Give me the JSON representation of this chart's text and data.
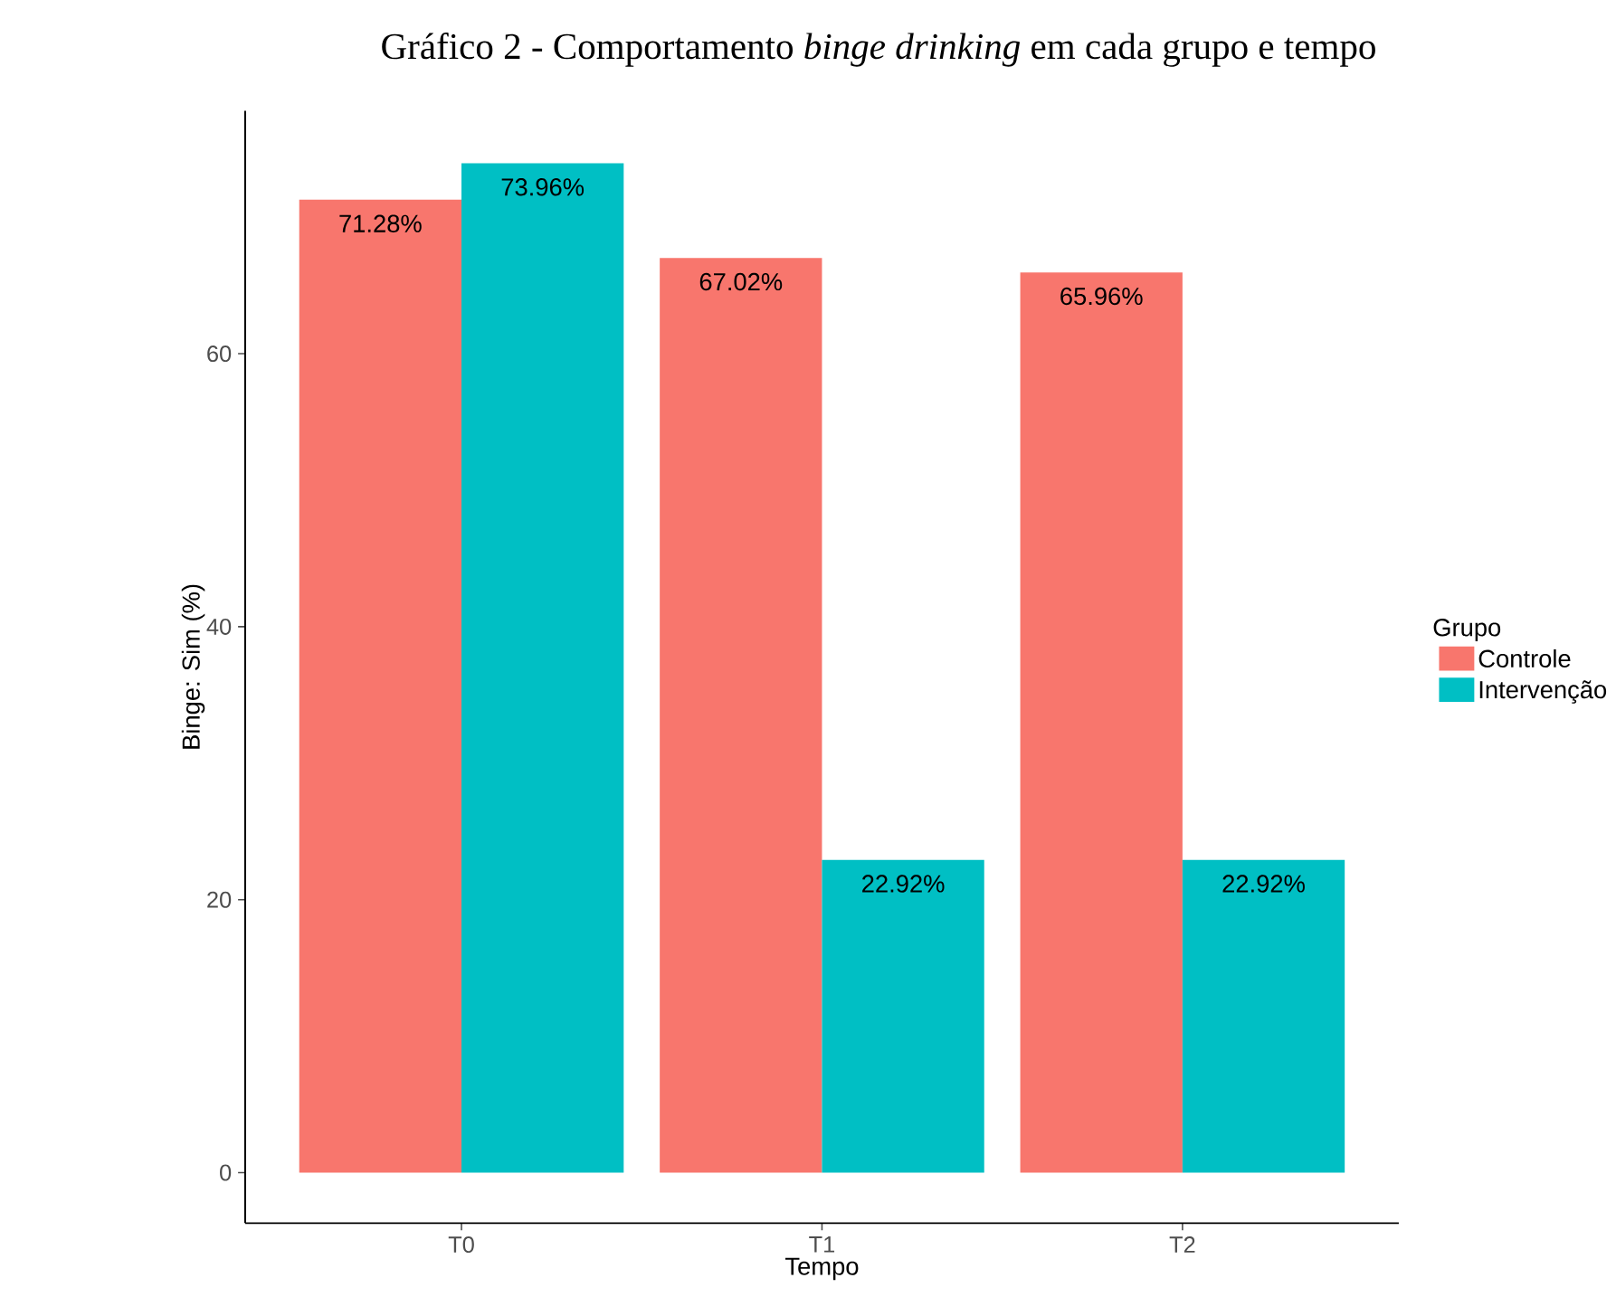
{
  "chart_data": {
    "type": "bar",
    "title": "Gráfico 2 - Comportamento *binge drinking* em cada grupo e tempo",
    "xlabel": "Tempo",
    "ylabel": "Binge: Sim (%)",
    "legend_title": "Grupo",
    "categories": [
      "T0",
      "T1",
      "T2"
    ],
    "series": [
      {
        "name": "Controle",
        "color": "#f8766d",
        "values": [
          71.28,
          67.02,
          65.96
        ],
        "value_labels": [
          "71.28%",
          "67.02%",
          "65.96%"
        ]
      },
      {
        "name": "Intervenção",
        "color": "#00bfc4",
        "values": [
          73.96,
          22.92,
          22.92
        ],
        "value_labels": [
          "73.96%",
          "22.92%",
          "22.92%"
        ]
      }
    ],
    "ylim": [
      -3.7,
      77.8
    ],
    "yticks": [
      0,
      20,
      40,
      60
    ],
    "legend": "right"
  }
}
